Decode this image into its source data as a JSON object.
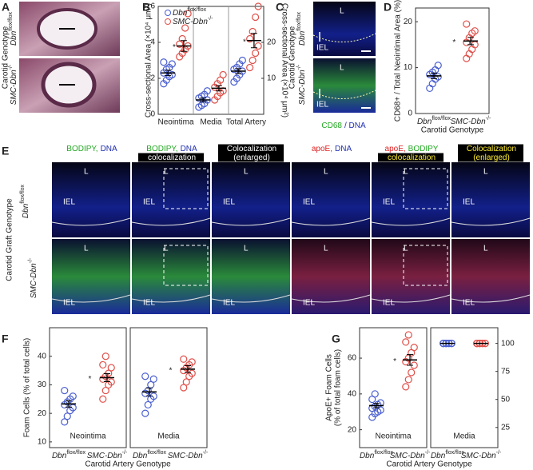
{
  "panels": {
    "A": {
      "letter": "A",
      "row_title": "Carotid Genotype",
      "rows": [
        "Dbnflox/flox",
        "SMC-Dbn-/-"
      ]
    },
    "C": {
      "letter": "C",
      "row_title": "Carotid Genotype",
      "rows": [
        "Dbnflox/flox",
        "SMC-Dbn-/-"
      ],
      "image_labels": [
        "L",
        "IEL"
      ],
      "stain": [
        {
          "text": "CD68",
          "color": "#22aa22"
        },
        {
          "text": "/ DNA",
          "color": "#1f2fb0"
        }
      ]
    },
    "E": {
      "letter": "E",
      "row_title": "Carotid Graft Genotype",
      "rows": [
        "Dbnflox/flox",
        "SMC-Dbn-/-"
      ],
      "image_labels": [
        "L",
        "IEL"
      ],
      "columns": [
        [
          [
            {
              "text": "BODIPY,",
              "color": "#22aa22"
            },
            {
              "text": "DNA",
              "color": "#1f2fb0"
            }
          ]
        ],
        [
          [
            {
              "text": "BODIPY,",
              "color": "#22aa22"
            },
            {
              "text": "DNA",
              "color": "#1f2fb0"
            }
          ],
          [
            {
              "text": "colocalization",
              "color": "#ffffff",
              "box": "#000000"
            }
          ]
        ],
        [
          [
            {
              "text": "Colocalization",
              "color": "#ffffff",
              "box": "#000000"
            }
          ],
          [
            {
              "text": "(enlarged)",
              "color": "#ffffff",
              "box": "#000000"
            }
          ]
        ],
        [
          [
            {
              "text": "apoE,",
              "color": "#e02020"
            },
            {
              "text": "DNA",
              "color": "#1f2fb0"
            }
          ]
        ],
        [
          [
            {
              "text": "apoE,",
              "color": "#e02020"
            },
            {
              "text": "BODIPY",
              "color": "#22aa22"
            }
          ],
          [
            {
              "text": "colocalization",
              "color": "#ffee33",
              "box": "#000000"
            }
          ]
        ],
        [
          [
            {
              "text": "Colocalization",
              "color": "#ffee33",
              "box": "#000000"
            }
          ],
          [
            {
              "text": "(enlarged)",
              "color": "#ffee33",
              "box": "#000000"
            }
          ]
        ]
      ]
    }
  },
  "chart_data": [
    {
      "type": "dotplot",
      "panel": "B",
      "ylabel": "Cross-sectional Area (×10⁴ μm²)",
      "y2label": "Cross-sectional Area (×10⁴ μm²)",
      "categories": [
        "Neointima",
        "Media",
        "Total Artery"
      ],
      "category_axes": [
        "y",
        "y",
        "y2"
      ],
      "dividers": true,
      "legend": "top",
      "ylim": [
        0,
        6
      ],
      "yticks": [
        0,
        2,
        4,
        6
      ],
      "y2lim": [
        0,
        30
      ],
      "y2ticks": [
        10,
        20
      ],
      "series": [
        {
          "name": "Dbnflox/flox",
          "color": "#4a5fd0",
          "values": [
            [
              1.7,
              1.9,
              2.1,
              2.2,
              2.3,
              2.5,
              2.6,
              2.8,
              2.9
            ],
            [
              0.4,
              0.5,
              0.6,
              0.8,
              0.9,
              1.0,
              1.1,
              1.3
            ],
            [
              9,
              10,
              11,
              12,
              12.5,
              13,
              14,
              15
            ]
          ],
          "mean": [
            2.3,
            0.8,
            12
          ],
          "sem": [
            0.15,
            0.1,
            0.7
          ]
        },
        {
          "name": "SMC-Dbn-/-",
          "color": "#e0504a",
          "values": [
            [
              3.2,
              3.4,
              3.6,
              3.8,
              3.9,
              4.2,
              4.8,
              5.6
            ],
            [
              0.8,
              1.0,
              1.2,
              1.3,
              1.5,
              1.7,
              1.9,
              2.2
            ],
            [
              13,
              15,
              17,
              19,
              21,
              23,
              27,
              30
            ]
          ],
          "mean": [
            3.8,
            1.45,
            20.5
          ],
          "sem": [
            0.3,
            0.15,
            2
          ]
        }
      ],
      "annotations": [
        {
          "text": "*",
          "category": 0
        },
        {
          "text": "*",
          "category": 2
        }
      ]
    },
    {
      "type": "dotplot",
      "panel": "D",
      "ylabel": "CD68+ / Total Neointimal Area (%)",
      "xlabel": "Carotid Genotype",
      "categories": [
        "Dbnflox/flox",
        "SMC-Dbn-/-"
      ],
      "colors": [
        "#4a5fd0",
        "#e0504a"
      ],
      "ylim": [
        0,
        23
      ],
      "yticks": [
        0,
        10,
        20
      ],
      "values": [
        [
          5.5,
          6.5,
          7.5,
          8,
          8.5,
          9,
          9.5,
          10.5
        ],
        [
          12,
          13,
          14,
          15,
          15.5,
          16.5,
          17.5,
          18,
          19.5
        ]
      ],
      "mean": [
        8.2,
        15.8
      ],
      "sem": [
        0.6,
        0.8
      ],
      "annotations": [
        {
          "text": "*",
          "category": 1
        }
      ]
    },
    {
      "type": "dotplot",
      "panel": "F",
      "title": "Neointima",
      "ylabel": "Foam Cells (% of total cells)",
      "xlabel": "Carotid Artery Genotype",
      "categories": [
        "Dbnflox/flox",
        "SMC-Dbn-/-"
      ],
      "colors": [
        "#4a5fd0",
        "#e0504a"
      ],
      "ylim": [
        8,
        50
      ],
      "yticks": [
        10,
        20,
        30,
        40
      ],
      "values": [
        [
          17,
          19,
          21,
          22,
          23,
          24,
          25,
          26,
          28
        ],
        [
          25,
          28,
          30,
          31,
          32,
          33,
          34,
          36,
          37,
          40
        ]
      ],
      "mean": [
        23.3,
        32.5
      ],
      "sem": [
        1.1,
        1.4
      ],
      "annotations": [
        {
          "text": "*",
          "category": 1
        }
      ]
    },
    {
      "type": "dotplot",
      "title": "Media",
      "categories": [
        "Dbnflox/flox",
        "SMC-Dbn-/-"
      ],
      "colors": [
        "#4a5fd0",
        "#e0504a"
      ],
      "ylim": [
        8,
        50
      ],
      "values": [
        [
          20,
          23,
          25,
          26,
          27,
          28,
          30,
          32,
          33
        ],
        [
          29,
          31,
          33,
          34,
          35,
          36,
          37,
          38,
          39
        ]
      ],
      "mean": [
        27.5,
        35.5
      ],
      "sem": [
        1.4,
        1.2
      ],
      "annotations": [
        {
          "text": "*",
          "category": 1
        }
      ]
    },
    {
      "type": "dotplot",
      "panel": "G",
      "title": "Neointima",
      "ylabel": [
        "ApoE+ Foam Cells",
        "(% of total foam cells)"
      ],
      "xlabel": "Carotid Artery Genotype",
      "categories": [
        "Dbnflox/flox",
        "SMC-Dbn-/-"
      ],
      "colors": [
        "#4a5fd0",
        "#e0504a"
      ],
      "ylim": [
        10,
        77
      ],
      "yticks": [
        20,
        40,
        60
      ],
      "values": [
        [
          27,
          29,
          30,
          31,
          32,
          33,
          34,
          35,
          37,
          40
        ],
        [
          44,
          48,
          52,
          56,
          58,
          60,
          63,
          66,
          69,
          73
        ]
      ],
      "mean": [
        33.5,
        59
      ],
      "sem": [
        1.2,
        3
      ],
      "annotations": [
        {
          "text": "*",
          "category": 1
        }
      ]
    },
    {
      "type": "dotplot",
      "title": "Media",
      "axis": "y2",
      "categories": [
        "Dbnflox/flox",
        "SMC-Dbn-/-"
      ],
      "colors": [
        "#4a5fd0",
        "#e0504a"
      ],
      "y2lim": [
        7,
        114
      ],
      "y2ticks": [
        25,
        50,
        75,
        100
      ],
      "values": [
        [
          100,
          100,
          100,
          100,
          100,
          100,
          100,
          100,
          100,
          100
        ],
        [
          100,
          100,
          100,
          100,
          100,
          100,
          100,
          100,
          100,
          100
        ]
      ],
      "mean": [
        100,
        100
      ],
      "sem": [
        0,
        0
      ]
    }
  ]
}
